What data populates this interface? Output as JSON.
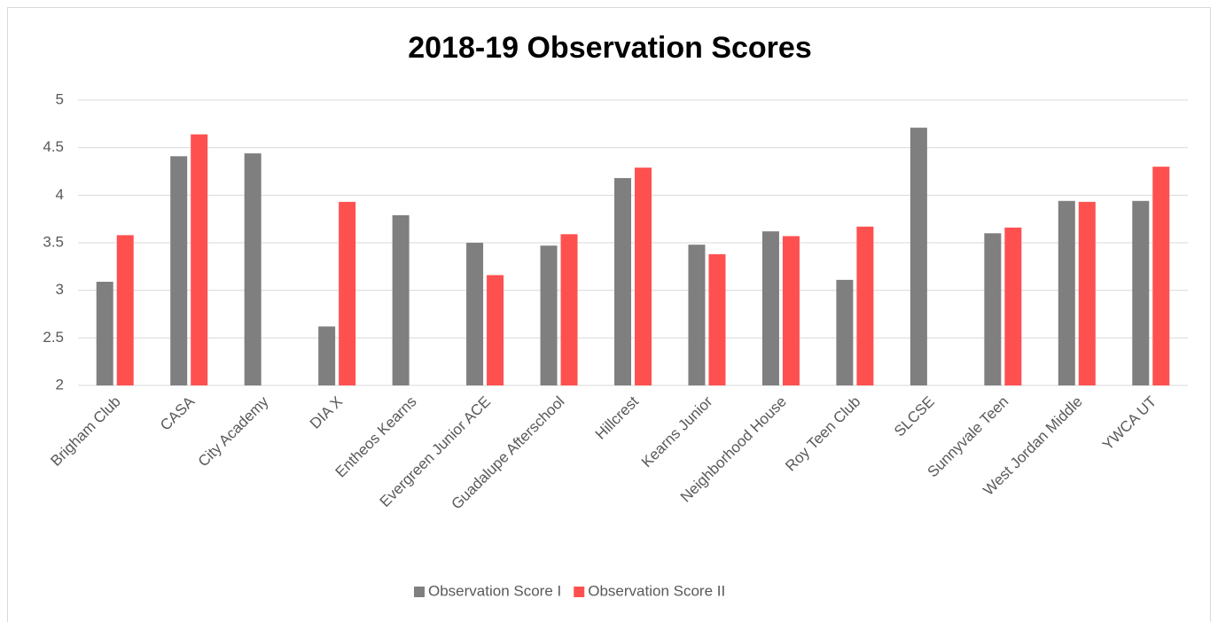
{
  "chart_data": {
    "type": "bar",
    "title": "2018-19 Observation Scores",
    "categories": [
      "Brigham Club",
      "CASA",
      "City Academy",
      "DIA X",
      "Entheos Kearns",
      "Evergreen Junior ACE",
      "Guadalupe Afterschool",
      "Hillcrest",
      "Kearns Junior",
      "Neighborhood House",
      "Roy Teen Club",
      "SLCSE",
      "Sunnyvale Teen",
      "West Jordan Middle",
      "YWCA UT"
    ],
    "series": [
      {
        "name": "Observation Score I",
        "color": "#7f7f7f",
        "values": [
          3.09,
          4.41,
          4.44,
          2.62,
          3.79,
          3.5,
          3.47,
          4.18,
          3.48,
          3.62,
          3.11,
          4.71,
          3.6,
          3.94,
          3.94
        ]
      },
      {
        "name": "Observation Score II",
        "color": "#ff5050",
        "values": [
          3.58,
          4.64,
          null,
          3.93,
          null,
          3.16,
          3.59,
          4.29,
          3.38,
          3.57,
          3.67,
          null,
          3.66,
          3.93,
          4.3
        ]
      }
    ],
    "ylim": [
      2,
      5
    ],
    "yticks": [
      2,
      2.5,
      3,
      3.5,
      4,
      4.5,
      5
    ],
    "grid": true,
    "legend": "bottom"
  }
}
